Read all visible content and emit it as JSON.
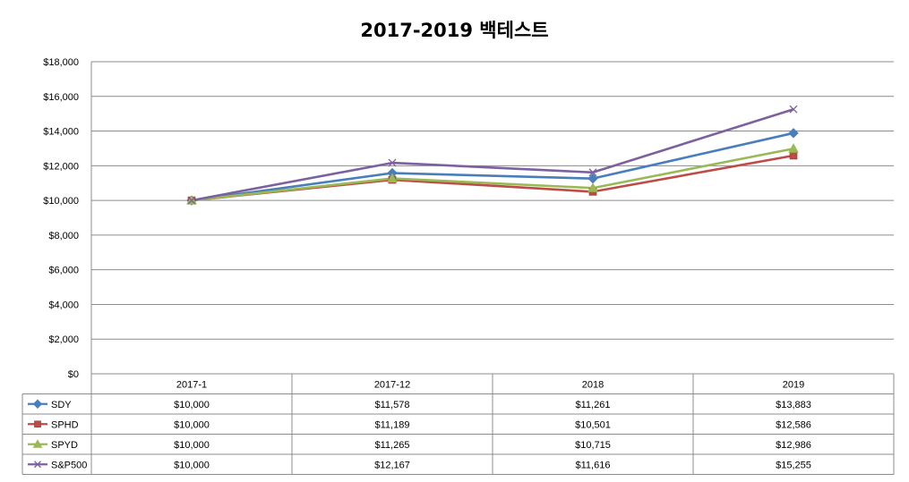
{
  "chart_data": {
    "type": "line",
    "title": "2017-2019 백테스트",
    "categories": [
      "2017-1",
      "2017-12",
      "2018",
      "2019"
    ],
    "ylim": [
      0,
      18000
    ],
    "y_ticks": [
      "$0",
      "$2,000",
      "$4,000",
      "$6,000",
      "$8,000",
      "$10,000",
      "$12,000",
      "$14,000",
      "$16,000",
      "$18,000"
    ],
    "grid": true,
    "legend": "data-table-below",
    "series": [
      {
        "name": "SDY",
        "color": "#4a7ebb",
        "marker": "diamond",
        "values": [
          10000,
          11578,
          11261,
          13883
        ],
        "labels": [
          "$10,000",
          "$11,578",
          "$11,261",
          "$13,883"
        ]
      },
      {
        "name": "SPHD",
        "color": "#be4b48",
        "marker": "square",
        "values": [
          10000,
          11189,
          10501,
          12586
        ],
        "labels": [
          "$10,000",
          "$11,189",
          "$10,501",
          "$12,586"
        ]
      },
      {
        "name": "SPYD",
        "color": "#98b954",
        "marker": "triangle",
        "values": [
          10000,
          11265,
          10715,
          12986
        ],
        "labels": [
          "$10,000",
          "$11,265",
          "$10,715",
          "$12,986"
        ]
      },
      {
        "name": "S&P500",
        "color": "#7d60a0",
        "marker": "x",
        "values": [
          10000,
          12167,
          11616,
          15255
        ],
        "labels": [
          "$10,000",
          "$12,167",
          "$11,616",
          "$15,255"
        ]
      }
    ]
  }
}
